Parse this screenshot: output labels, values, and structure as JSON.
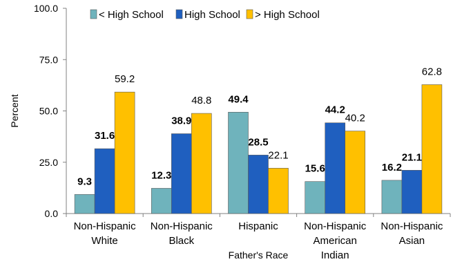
{
  "chart_data": {
    "type": "bar",
    "title": "",
    "xlabel": "Father's Race",
    "ylabel": "Percent",
    "ylim": [
      0,
      100
    ],
    "yticks": [
      "0.0",
      "25.0",
      "50.0",
      "75.0",
      "100.0"
    ],
    "categories": [
      [
        "Non-Hispanic",
        "White"
      ],
      [
        "Non-Hispanic",
        "Black"
      ],
      [
        "Hispanic"
      ],
      [
        "Non-Hispanic",
        "American",
        "Indian"
      ],
      [
        "Non-Hispanic",
        "Asian"
      ]
    ],
    "series": [
      {
        "name": "< High School",
        "values": [
          9.3,
          12.3,
          49.4,
          15.6,
          16.2
        ],
        "labels": [
          "9.3",
          "12.3",
          "49.4",
          "15.6",
          "16.2"
        ],
        "color": "#6fb3bc",
        "label_bold": true
      },
      {
        "name": "High School",
        "values": [
          31.6,
          38.9,
          28.5,
          44.2,
          21.1
        ],
        "labels": [
          "31.6",
          "38.9",
          "28.5",
          "44.2",
          "21.1"
        ],
        "color": "#1f5fbf",
        "label_bold": true
      },
      {
        "name": "> High School",
        "values": [
          59.2,
          48.8,
          22.1,
          40.2,
          62.8
        ],
        "labels": [
          "59.2",
          "48.8",
          "22.1",
          "40.2",
          "62.8"
        ],
        "color": "#ffc000",
        "label_bold": false
      }
    ],
    "grid": false,
    "legend_position": "top"
  }
}
